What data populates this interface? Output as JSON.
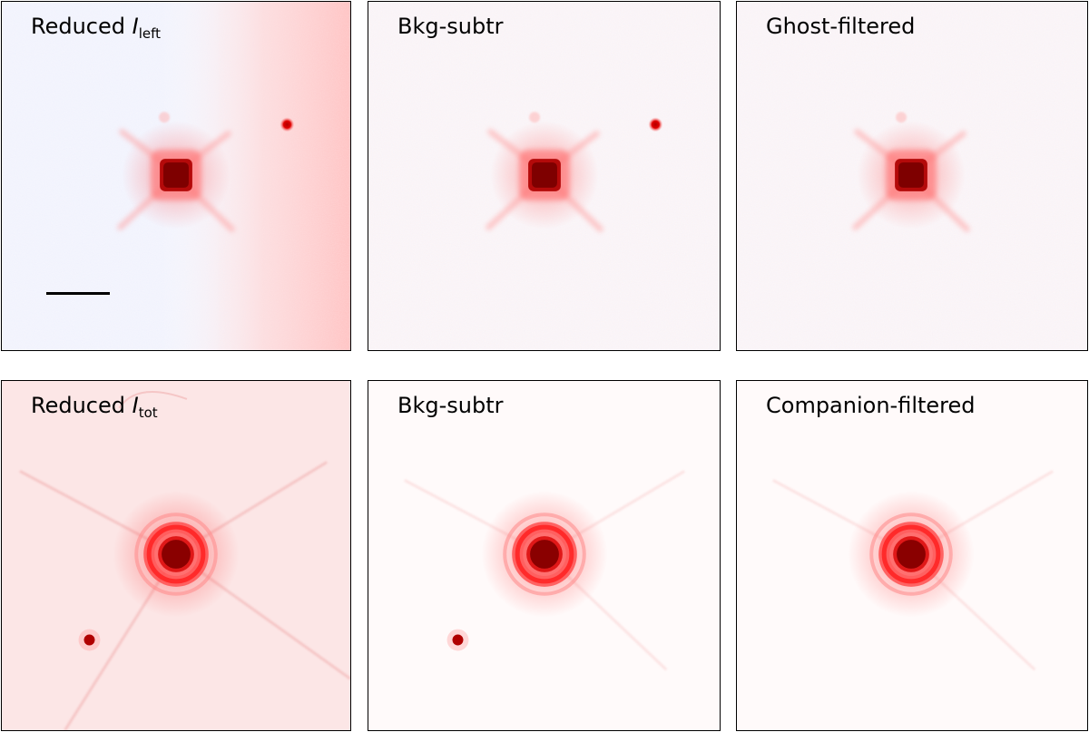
{
  "figure": {
    "top_row": [
      {
        "title": "Reduced ",
        "symbol": "I",
        "subscript": "left"
      },
      {
        "title": "Bkg-subtr"
      },
      {
        "title": "Ghost-filtered"
      }
    ],
    "bottom_row": [
      {
        "title": "Reduced ",
        "symbol": "I",
        "subscript": "tot"
      },
      {
        "title": "Bkg-subtr"
      },
      {
        "title": "Companion-filtered"
      }
    ]
  },
  "colors": {
    "negative": "#c8cdf5",
    "positive": "#ff0000",
    "core": "#8b0000",
    "frame": "#000000"
  }
}
